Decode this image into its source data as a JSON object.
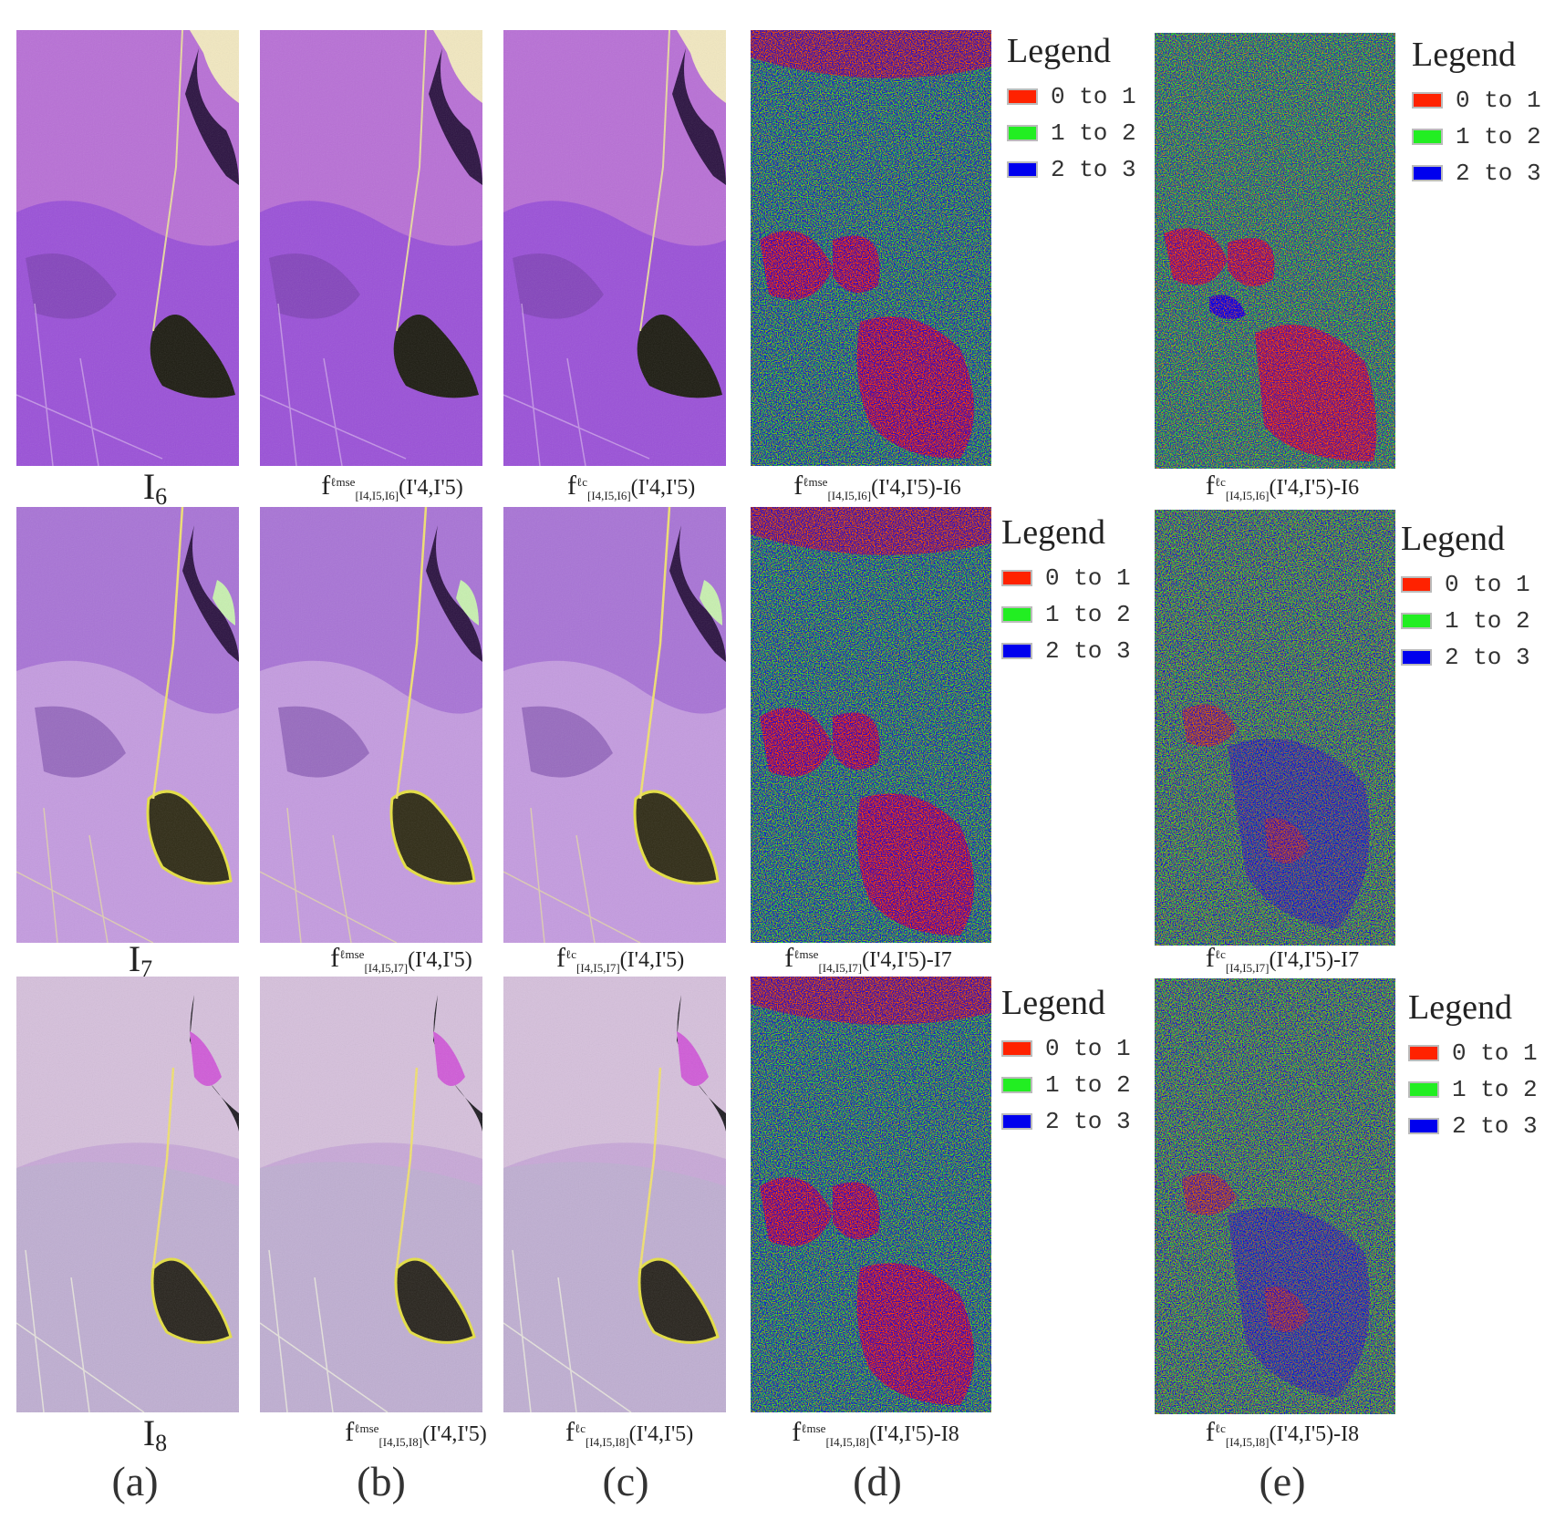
{
  "colors": {
    "red": "#ff2200",
    "green": "#22ee22",
    "blue": "#0000ee"
  },
  "legend": {
    "title": "Legend",
    "items": [
      {
        "label": "0 to 1",
        "color": "#ff2200"
      },
      {
        "label": "1 to 2",
        "color": "#22ee22"
      },
      {
        "label": "2 to 3",
        "color": "#0000ee"
      }
    ]
  },
  "rows": [
    {
      "label_main": "I",
      "label_sub": "6",
      "cap_b": "f",
      "cap_b_sup": "ℓmse",
      "cap_b_sub": "[I4,I5,I6]",
      "cap_args": "(I'4,I'5)",
      "cap_c_sup": "ℓc",
      "cap_c_sub": "[I4,I5,I6]",
      "cap_minus": "-I6"
    },
    {
      "label_main": "I",
      "label_sub": "7",
      "cap_b": "f",
      "cap_b_sup": "ℓmse",
      "cap_b_sub": "[I4,I5,I7]",
      "cap_args": "(I'4,I'5)",
      "cap_c_sup": "ℓc",
      "cap_c_sub": "[I4,I5,I7]",
      "cap_minus": "-I7"
    },
    {
      "label_main": "I",
      "label_sub": "8",
      "cap_b": "f",
      "cap_b_sup": "ℓmse",
      "cap_b_sub": "[I4,I5,I8]",
      "cap_args": "(I'4,I'5)",
      "cap_c_sup": "ℓc",
      "cap_c_sub": "[I4,I5,I8]",
      "cap_minus": "-I8"
    }
  ],
  "column_letters": [
    "(a)",
    "(b)",
    "(c)",
    "(d)",
    "(e)"
  ]
}
